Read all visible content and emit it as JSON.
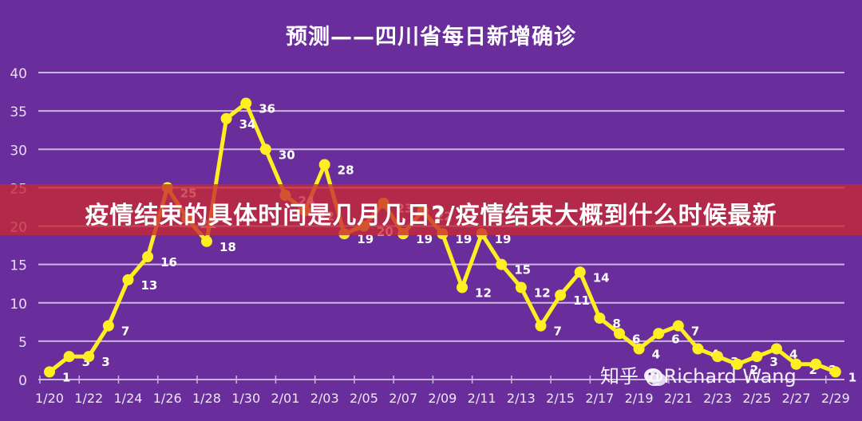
{
  "header": {
    "title": "预测——四川省每日新增确诊"
  },
  "banner": {
    "text": "疫情结束的具体时间是几月几日?/疫情结束大概到什么时候最新"
  },
  "watermark": {
    "text": "知乎 @Richard Wang",
    "icon": "wechat-icon"
  },
  "colors": {
    "background": "#6a2e9c",
    "line": "#ffee22",
    "grid": "#c9b6e0",
    "label": "#ffffff",
    "banner": "#c52a3a"
  },
  "chart_data": {
    "type": "line",
    "title": "预测——四川省每日新增确诊",
    "xlabel": "",
    "ylabel": "",
    "ylim": [
      0,
      40
    ],
    "yticks": [
      0,
      5,
      10,
      15,
      20,
      25,
      30,
      35,
      40
    ],
    "grid": true,
    "legend": null,
    "x": [
      "1/20",
      "1/21",
      "1/22",
      "1/23",
      "1/24",
      "1/25",
      "1/26",
      "1/27",
      "1/28",
      "1/29",
      "1/30",
      "1/31",
      "2/01",
      "2/02",
      "2/03",
      "2/04",
      "2/05",
      "2/06",
      "2/07",
      "2/08",
      "2/09",
      "2/10",
      "2/11",
      "2/12",
      "2/13",
      "2/14",
      "2/15",
      "2/16",
      "2/17",
      "2/18",
      "2/19",
      "2/20",
      "2/21",
      "2/22",
      "2/23",
      "2/24",
      "2/25",
      "2/26",
      "2/27",
      "2/28",
      "2/29"
    ],
    "xtick_labels": [
      "1/20",
      "1/22",
      "1/24",
      "1/26",
      "1/28",
      "1/30",
      "2/01",
      "2/03",
      "2/05",
      "2/07",
      "2/09",
      "2/11",
      "2/13",
      "2/15",
      "2/17",
      "2/19",
      "2/21",
      "2/23",
      "2/25",
      "2/27",
      "2/29"
    ],
    "series": [
      {
        "name": "每日新增确诊",
        "values": [
          1,
          3,
          3,
          7,
          13,
          16,
          25,
          21,
          18,
          34,
          36,
          30,
          24,
          22,
          28,
          19,
          20,
          23,
          19,
          22,
          19,
          12,
          19,
          15,
          12,
          7,
          11,
          14,
          8,
          6,
          4,
          6,
          7,
          4,
          3,
          2,
          3,
          4,
          2,
          2,
          1
        ]
      }
    ]
  }
}
